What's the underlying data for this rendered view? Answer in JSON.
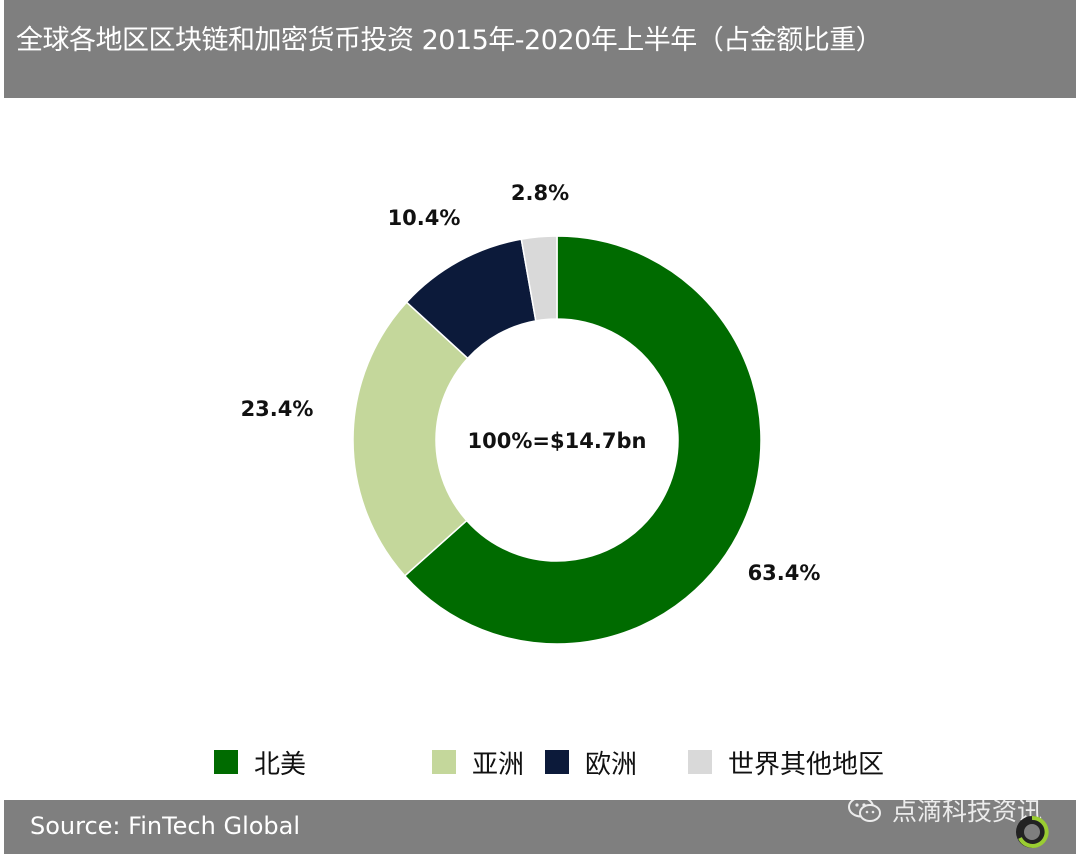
{
  "header": {
    "title": "全球各地区区块链和加密货币投资 2015年-2020年上半年（占金额比重）"
  },
  "chart_data": {
    "type": "pie",
    "center_label": "100%=$14.7bn",
    "series": [
      {
        "name": "北美",
        "value": 63.4,
        "label": "63.4%",
        "color": "#006b00"
      },
      {
        "name": "亚洲",
        "value": 23.4,
        "label": "23.4%",
        "color": "#c4d79b"
      },
      {
        "name": "欧洲",
        "value": 10.4,
        "label": "10.4%",
        "color": "#0c1a3a"
      },
      {
        "name": "世界其他地区",
        "value": 2.8,
        "label": "2.8%",
        "color": "#d9d9d9"
      }
    ],
    "legend_placement": "bottom"
  },
  "footer": {
    "source": "Source: FinTech Global",
    "watermark": "点滴科技资讯"
  }
}
